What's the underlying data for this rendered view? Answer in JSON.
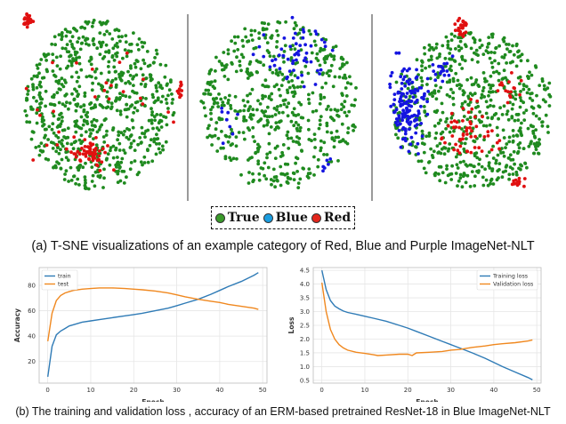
{
  "tsne": {
    "panels": [
      "Red ImageNet-NLT",
      "Blue ImageNet-NLT",
      "Purple ImageNet-NLT"
    ],
    "legend": [
      {
        "label": "True",
        "color": "#3a9a2a"
      },
      {
        "label": "Blue",
        "color": "#1a9de0"
      },
      {
        "label": "Red",
        "color": "#e3261c"
      }
    ],
    "point_colors": {
      "true": "#1f8a1f",
      "blue": "#1515e0",
      "red": "#e01010"
    }
  },
  "caption_a": "(a) T-SNE visualizations of an example  category of Red, Blue and Purple ImageNet-NLT",
  "caption_b": "(b) The training and validation loss , accuracy of an ERM-based pretrained ResNet-18  in Blue ImageNet-NLT",
  "chart_data": [
    {
      "type": "line",
      "xlabel": "Epoch",
      "ylabel": "Accuracy",
      "xlim": [
        -2,
        51
      ],
      "ylim": [
        3,
        94
      ],
      "xticks": [
        0,
        10,
        20,
        30,
        40,
        50
      ],
      "yticks": [
        20,
        40,
        60,
        80
      ],
      "legend": "top-left",
      "series": [
        {
          "name": "train",
          "color": "#2f7bb6",
          "x": [
            0,
            1,
            2,
            3,
            4,
            5,
            6,
            8,
            10,
            12,
            15,
            18,
            20,
            22,
            25,
            28,
            30,
            32,
            35,
            38,
            40,
            42,
            45,
            48,
            49
          ],
          "y": [
            8,
            32,
            41,
            44,
            46,
            48,
            49,
            51,
            52,
            53,
            54.5,
            56,
            57,
            58,
            60,
            62,
            64,
            66,
            69,
            73,
            76,
            79,
            83,
            88,
            90
          ]
        },
        {
          "name": "test",
          "color": "#f0881f",
          "x": [
            0,
            1,
            2,
            3,
            4,
            5,
            6,
            8,
            10,
            12,
            15,
            18,
            20,
            22,
            25,
            28,
            30,
            32,
            35,
            38,
            40,
            42,
            45,
            48,
            49
          ],
          "y": [
            36,
            58,
            68,
            72,
            74,
            75,
            76,
            77,
            77.5,
            78,
            78,
            77.5,
            77,
            76.5,
            75.5,
            74,
            72.5,
            71,
            69,
            67.5,
            66.5,
            65,
            63.5,
            62,
            61
          ]
        }
      ]
    },
    {
      "type": "line",
      "xlabel": "Epoch",
      "ylabel": "Loss",
      "xlim": [
        -2,
        51
      ],
      "ylim": [
        0.4,
        4.6
      ],
      "xticks": [
        0,
        10,
        20,
        30,
        40,
        50
      ],
      "yticks": [
        0.5,
        1.0,
        1.5,
        2.0,
        2.5,
        3.0,
        3.5,
        4.0,
        4.5
      ],
      "ytick_labels": [
        "0.5",
        "1.0",
        "1.5",
        "2.0",
        "2.5",
        "3.0",
        "3.5",
        "4.0",
        "4.5"
      ],
      "legend": "top-right",
      "series": [
        {
          "name": "Training loss",
          "color": "#2f7bb6",
          "x": [
            0,
            1,
            2,
            3,
            4,
            5,
            6,
            8,
            10,
            12,
            15,
            18,
            20,
            22,
            25,
            28,
            30,
            32,
            35,
            38,
            40,
            42,
            45,
            48,
            49
          ],
          "y": [
            4.5,
            3.8,
            3.4,
            3.2,
            3.1,
            3.02,
            2.97,
            2.9,
            2.83,
            2.76,
            2.65,
            2.5,
            2.4,
            2.28,
            2.1,
            1.92,
            1.8,
            1.68,
            1.5,
            1.3,
            1.15,
            1.0,
            0.8,
            0.6,
            0.52
          ]
        },
        {
          "name": "Validation loss",
          "color": "#f0881f",
          "x": [
            0,
            1,
            2,
            3,
            4,
            5,
            6,
            8,
            10,
            12,
            13,
            15,
            18,
            20,
            21,
            22,
            25,
            28,
            30,
            32,
            35,
            38,
            40,
            42,
            45,
            48,
            49
          ],
          "y": [
            4.05,
            3.0,
            2.35,
            2.0,
            1.8,
            1.68,
            1.6,
            1.52,
            1.48,
            1.43,
            1.4,
            1.42,
            1.45,
            1.45,
            1.4,
            1.5,
            1.52,
            1.55,
            1.6,
            1.62,
            1.7,
            1.75,
            1.8,
            1.83,
            1.87,
            1.93,
            1.97
          ]
        }
      ]
    }
  ]
}
